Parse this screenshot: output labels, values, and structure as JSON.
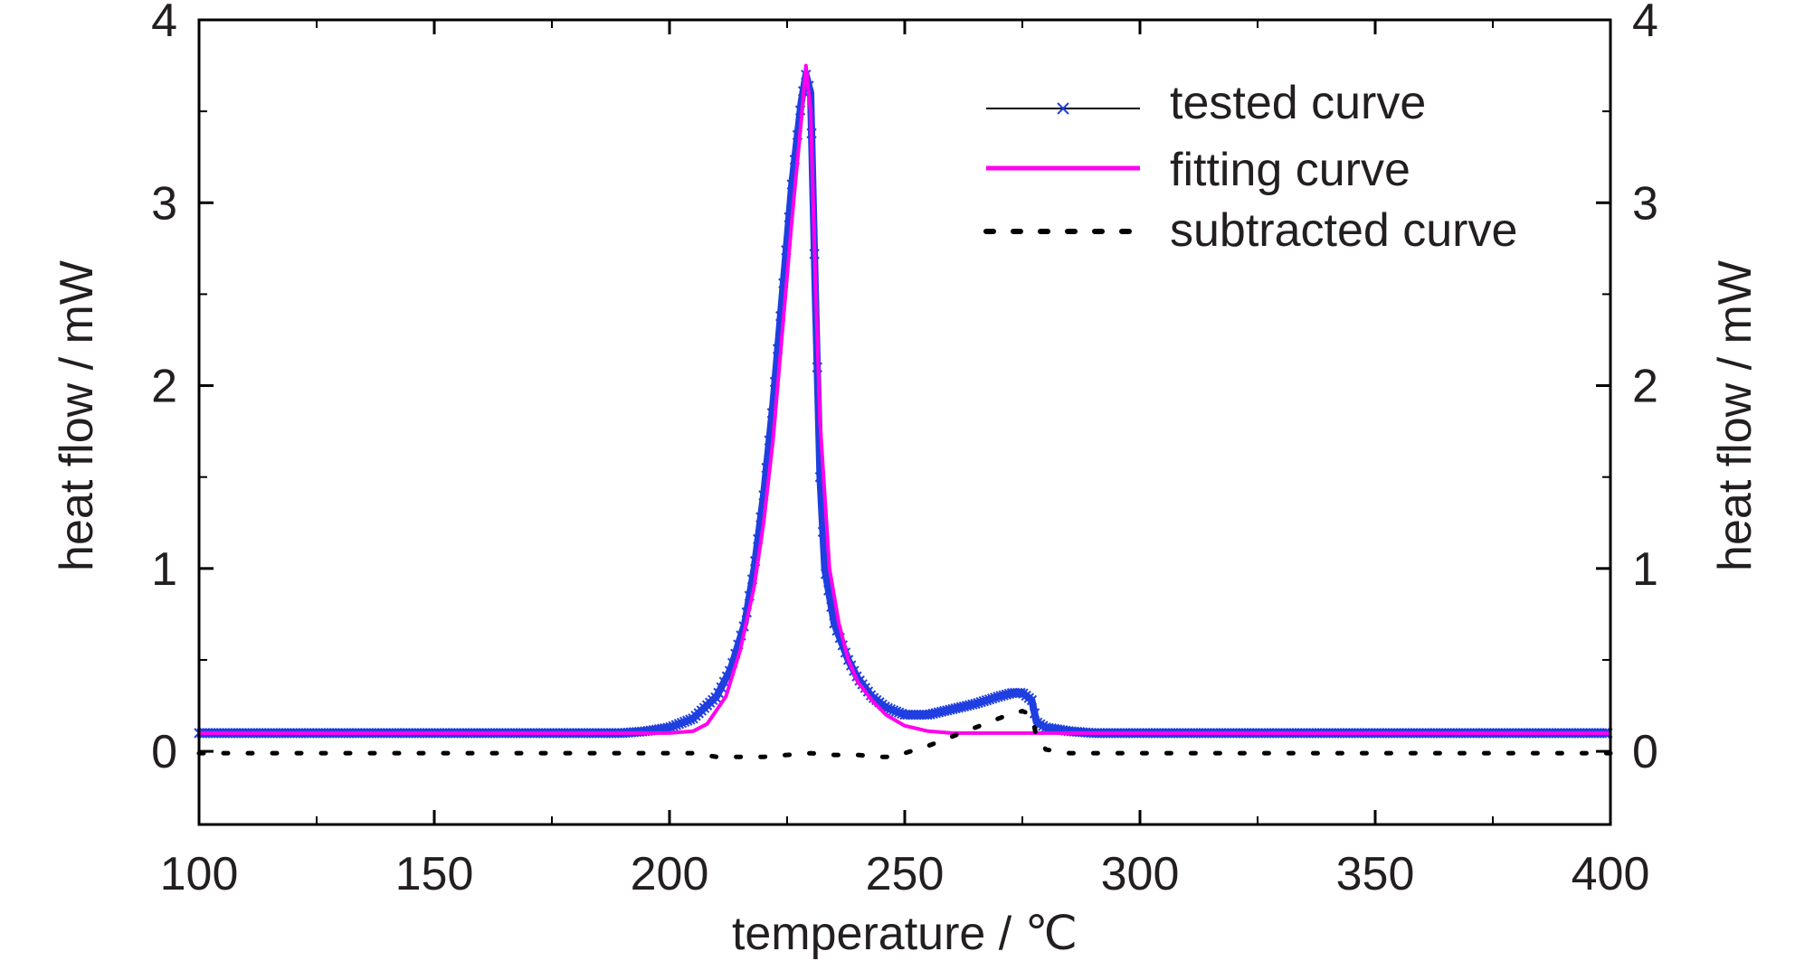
{
  "chart_data": {
    "type": "line",
    "xlabel": "temperature / ℃",
    "ylabel_left": "heat flow / mW",
    "ylabel_right": "heat flow / mW",
    "xlim": [
      100,
      400
    ],
    "ylim": [
      -0.4,
      4
    ],
    "x_ticks": [
      100,
      150,
      200,
      250,
      300,
      350,
      400
    ],
    "y_ticks": [
      0,
      1,
      2,
      3,
      4
    ],
    "x_tick_labels": [
      "100",
      "150",
      "200",
      "250",
      "300",
      "350",
      "400"
    ],
    "y_tick_labels": [
      "0",
      "1",
      "2",
      "3",
      "4"
    ],
    "grid": false,
    "legend_position": "top-right",
    "series": [
      {
        "name": "tested curve",
        "style": "line-with-x-markers",
        "color": "#1f3fe0",
        "x": [
          100,
          150,
          190,
          195,
          200,
          205,
          210,
          213,
          216,
          218,
          220,
          222,
          224,
          226,
          228,
          229,
          230,
          231,
          232,
          233,
          235,
          238,
          240,
          243,
          246,
          250,
          255,
          260,
          265,
          270,
          273,
          275,
          277,
          278,
          280,
          285,
          290,
          300,
          350,
          400
        ],
        "y": [
          0.1,
          0.1,
          0.1,
          0.11,
          0.13,
          0.18,
          0.3,
          0.45,
          0.7,
          1.0,
          1.4,
          1.9,
          2.5,
          3.1,
          3.55,
          3.7,
          3.6,
          2.5,
          1.5,
          1.0,
          0.7,
          0.5,
          0.4,
          0.3,
          0.24,
          0.2,
          0.2,
          0.23,
          0.26,
          0.3,
          0.32,
          0.32,
          0.28,
          0.16,
          0.13,
          0.11,
          0.1,
          0.1,
          0.1,
          0.1
        ]
      },
      {
        "name": "fitting curve",
        "style": "solid",
        "color": "#ff00ee",
        "x": [
          100,
          150,
          200,
          205,
          208,
          212,
          215,
          218,
          220,
          222,
          224,
          226,
          228,
          229,
          230,
          231,
          232,
          234,
          236,
          238,
          240,
          243,
          246,
          250,
          255,
          260,
          270,
          300,
          350,
          400
        ],
        "y": [
          0.1,
          0.1,
          0.1,
          0.11,
          0.15,
          0.3,
          0.55,
          0.9,
          1.25,
          1.7,
          2.3,
          2.9,
          3.45,
          3.75,
          3.5,
          2.6,
          1.8,
          1.0,
          0.7,
          0.5,
          0.38,
          0.28,
          0.2,
          0.14,
          0.11,
          0.1,
          0.1,
          0.1,
          0.1,
          0.1
        ]
      },
      {
        "name": "subtracted curve",
        "style": "dotted",
        "color": "#000000",
        "x": [
          100,
          150,
          200,
          205,
          210,
          215,
          220,
          225,
          230,
          235,
          240,
          245,
          248,
          250,
          255,
          260,
          265,
          270,
          273,
          275,
          277,
          278,
          280,
          285,
          290,
          300,
          350,
          400
        ],
        "y": [
          -0.01,
          -0.01,
          -0.01,
          -0.01,
          -0.03,
          -0.03,
          -0.03,
          -0.02,
          -0.01,
          -0.02,
          -0.02,
          -0.03,
          -0.03,
          -0.01,
          0.03,
          0.08,
          0.13,
          0.18,
          0.21,
          0.22,
          0.2,
          0.08,
          0.01,
          -0.01,
          -0.01,
          -0.01,
          -0.01,
          -0.01
        ]
      }
    ]
  }
}
